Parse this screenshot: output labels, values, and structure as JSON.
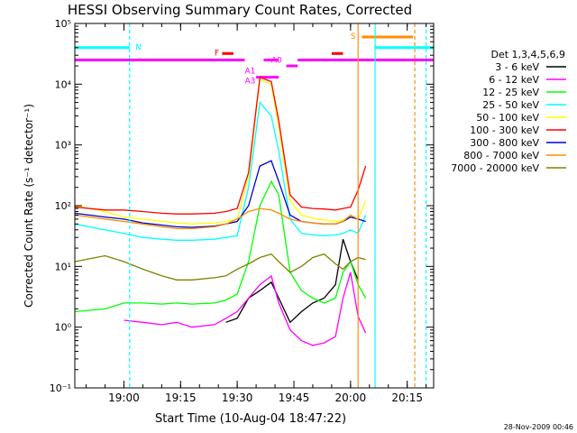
{
  "chart_data": {
    "type": "line",
    "title": "HESSI Observing Summary Count Rates, Corrected",
    "xlabel": "Start Time (10-Aug-04 18:47:22)",
    "ylabel": "Corrected Count Rate (s⁻¹ detector⁻¹)",
    "yscale": "log",
    "ylim": [
      0.1,
      100000
    ],
    "xlim_min": [
      -13,
      82
    ],
    "x_tick_labels": [
      "19:00",
      "19:15",
      "19:30",
      "19:45",
      "20:00",
      "20:15"
    ],
    "y_tick_labels": [
      "10⁻¹",
      "10⁰",
      "10¹",
      "10²",
      "10³",
      "10⁴",
      "10⁵"
    ],
    "legend_title": "Det 1,3,4,5,6,9",
    "legend_position": "right",
    "footer_date": "28-Nov-2009 00:46",
    "series": [
      {
        "name": "3 - 6 keV",
        "color": "#000000",
        "x": [
          -13,
          -5,
          0,
          5,
          10,
          14,
          18,
          24,
          27,
          30,
          33,
          36,
          39,
          41,
          44,
          47,
          50,
          53,
          56,
          58,
          60,
          62,
          64,
          65,
          70,
          75,
          78,
          82
        ],
        "y": [
          null,
          null,
          null,
          null,
          null,
          null,
          null,
          null,
          1.2,
          1.4,
          3,
          4,
          5.5,
          3,
          1.2,
          1.8,
          2.5,
          3,
          5,
          28,
          12,
          6,
          null,
          null,
          null,
          null,
          null,
          null
        ]
      },
      {
        "name": "6 - 12 keV",
        "color": "#ff00ff",
        "x": [
          -13,
          -5,
          0,
          5,
          10,
          14,
          18,
          24,
          27,
          30,
          33,
          36,
          39,
          41,
          44,
          47,
          50,
          53,
          56,
          58,
          60,
          62,
          64,
          65,
          70,
          75,
          78,
          82
        ],
        "y": [
          null,
          null,
          1.3,
          1.2,
          1.1,
          1.2,
          1.0,
          1.1,
          1.4,
          1.8,
          3,
          5,
          7,
          2.5,
          0.9,
          0.6,
          0.5,
          0.55,
          0.7,
          3,
          8,
          1.5,
          0.8,
          null,
          null,
          null,
          null,
          null
        ]
      },
      {
        "name": "12 - 25 keV",
        "color": "#00ff00",
        "x": [
          -13,
          -5,
          0,
          5,
          10,
          14,
          18,
          24,
          27,
          30,
          33,
          36,
          39,
          41,
          44,
          47,
          50,
          53,
          56,
          58,
          60,
          62,
          64,
          65,
          70,
          75,
          78,
          82
        ],
        "y": [
          1.8,
          2,
          2.5,
          2.5,
          2.4,
          2.5,
          2.4,
          2.5,
          2.8,
          3.5,
          12,
          100,
          250,
          150,
          8,
          4,
          3,
          2.5,
          3,
          8,
          12,
          5,
          3,
          null,
          null,
          null,
          null,
          1.8
        ]
      },
      {
        "name": "25 - 50 keV",
        "color": "#00ffff",
        "x": [
          -13,
          -5,
          0,
          5,
          10,
          14,
          18,
          24,
          27,
          30,
          33,
          36,
          39,
          41,
          44,
          47,
          50,
          53,
          56,
          58,
          60,
          62,
          64,
          65,
          70,
          75,
          78,
          82
        ],
        "y": [
          50,
          40,
          35,
          30,
          28,
          27,
          27,
          28,
          30,
          32,
          200,
          5000,
          3000,
          800,
          60,
          35,
          33,
          32,
          33,
          35,
          40,
          35,
          70,
          null,
          null,
          null,
          null,
          50
        ]
      },
      {
        "name": "50 - 100 keV",
        "color": "#ffff00",
        "x": [
          -13,
          -5,
          0,
          5,
          10,
          14,
          18,
          24,
          27,
          30,
          33,
          36,
          39,
          41,
          44,
          47,
          50,
          53,
          56,
          58,
          60,
          62,
          64,
          65,
          70,
          75,
          78,
          82
        ],
        "y": [
          100,
          80,
          65,
          60,
          55,
          52,
          50,
          52,
          55,
          60,
          300,
          12000,
          10000,
          2000,
          120,
          70,
          62,
          58,
          55,
          58,
          65,
          60,
          120,
          null,
          null,
          null,
          null,
          100
        ]
      },
      {
        "name": "100 - 300 keV",
        "color": "#ff0000",
        "x": [
          -13,
          -5,
          0,
          5,
          10,
          14,
          18,
          24,
          27,
          30,
          33,
          36,
          39,
          41,
          44,
          47,
          50,
          53,
          56,
          58,
          60,
          62,
          64,
          65,
          70,
          75,
          78,
          82
        ],
        "y": [
          95,
          85,
          85,
          80,
          75,
          73,
          73,
          75,
          80,
          90,
          350,
          13000,
          11000,
          2500,
          150,
          95,
          90,
          88,
          85,
          90,
          95,
          180,
          450,
          null,
          null,
          null,
          null,
          270
        ]
      },
      {
        "name": "300 - 800 keV",
        "color": "#0000cc",
        "x": [
          -13,
          -5,
          0,
          5,
          10,
          14,
          18,
          24,
          27,
          30,
          33,
          36,
          39,
          41,
          44,
          47,
          50,
          53,
          56,
          58,
          60,
          62,
          64,
          65,
          70,
          75,
          78,
          82
        ],
        "y": [
          75,
          65,
          60,
          52,
          48,
          45,
          44,
          46,
          50,
          55,
          100,
          450,
          550,
          250,
          70,
          55,
          52,
          50,
          50,
          55,
          65,
          60,
          55,
          null,
          null,
          null,
          null,
          65
        ]
      },
      {
        "name": "800 - 7000 keV",
        "color": "#ff8c00",
        "x": [
          -13,
          -5,
          0,
          5,
          10,
          14,
          18,
          24,
          27,
          30,
          33,
          36,
          39,
          41,
          44,
          47,
          50,
          53,
          56,
          58,
          60,
          62,
          64,
          65,
          70,
          75,
          78,
          82
        ],
        "y": [
          70,
          60,
          55,
          50,
          45,
          42,
          42,
          45,
          50,
          60,
          80,
          90,
          85,
          75,
          60,
          55,
          52,
          50,
          50,
          55,
          70,
          60,
          null,
          null,
          null,
          null,
          null,
          null
        ]
      },
      {
        "name": "7000 - 20000 keV",
        "color": "#808000",
        "x": [
          -13,
          -5,
          0,
          5,
          10,
          14,
          18,
          24,
          27,
          30,
          33,
          36,
          39,
          41,
          44,
          47,
          50,
          53,
          56,
          58,
          60,
          62,
          64,
          65,
          70,
          75,
          78,
          82
        ],
        "y": [
          12,
          15,
          12,
          9,
          7,
          6,
          6,
          6.5,
          7,
          9,
          11,
          14,
          16,
          12,
          8,
          10,
          14,
          16,
          11,
          9,
          12,
          14,
          13,
          null,
          null,
          null,
          null,
          null
        ]
      }
    ],
    "annotations": [
      {
        "text": "N",
        "color": "#00ffff"
      },
      {
        "text": "F",
        "color": "#ff0000"
      },
      {
        "text": "S",
        "color": "#ff8c00"
      },
      {
        "text": "A0",
        "color": "#ff00ff"
      },
      {
        "text": "A1",
        "color": "#ff00ff"
      },
      {
        "text": "A3",
        "color": "#ff00ff"
      }
    ]
  }
}
